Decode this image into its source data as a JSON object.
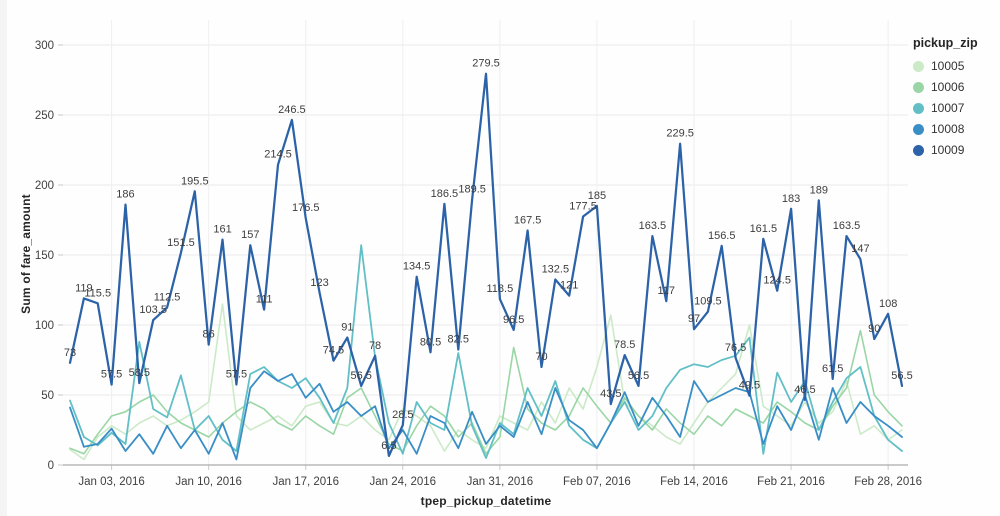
{
  "page": {
    "background": "#fefefe"
  },
  "axes": {
    "ylabel": "Sum of fare_amount",
    "xlabel": "tpep_pickup_datetime"
  },
  "legend": {
    "title": "pickup_zip",
    "items": [
      "10005",
      "10006",
      "10007",
      "10008",
      "10009"
    ]
  },
  "chart_data": {
    "type": "line",
    "title": "",
    "xlabel": "tpep_pickup_datetime",
    "ylabel": "Sum of fare_amount",
    "ylim": [
      0,
      300
    ],
    "y_ticks": [
      0,
      50,
      100,
      150,
      200,
      250,
      300
    ],
    "x_count": 61,
    "x_tick_labels": [
      "Jan 03, 2016",
      "Jan 10, 2016",
      "Jan 17, 2016",
      "Jan 24, 2016",
      "Jan 31, 2016",
      "Feb 07, 2016",
      "Feb 14, 2016",
      "Feb 21, 2016",
      "Feb 28, 2016"
    ],
    "x_tick_indices": [
      3,
      10,
      17,
      24,
      31,
      38,
      45,
      52,
      59
    ],
    "grid": true,
    "legend_title": "pickup_zip",
    "legend_position": "top-right",
    "colors": {
      "grid": "#eaeaea",
      "baseline": "#aaaaaa",
      "tick_text": "#3f3f3f",
      "data_label": "#3d3d3d"
    },
    "series": [
      {
        "name": "10005",
        "color": "#cdeac8",
        "width": 1.6,
        "labeled": false,
        "values": [
          11,
          4,
          20,
          28,
          22,
          30,
          35,
          28,
          32,
          38,
          45,
          115,
          35,
          25,
          30,
          35,
          28,
          42,
          45,
          30,
          28,
          35,
          25,
          18,
          40,
          35,
          28,
          10,
          25,
          18,
          12,
          35,
          30,
          25,
          45,
          30,
          55,
          40,
          70,
          107,
          45,
          35,
          28,
          20,
          15,
          30,
          45,
          55,
          65,
          100,
          42,
          35,
          28,
          45,
          30,
          38,
          60,
          22,
          28,
          18,
          25
        ]
      },
      {
        "name": "10006",
        "color": "#9ad6a5",
        "width": 1.6,
        "labeled": false,
        "values": [
          12,
          8,
          22,
          35,
          38,
          45,
          50,
          38,
          30,
          25,
          20,
          30,
          38,
          45,
          40,
          30,
          25,
          35,
          28,
          22,
          48,
          55,
          35,
          15,
          10,
          28,
          42,
          35,
          20,
          30,
          8,
          20,
          84,
          40,
          30,
          25,
          35,
          55,
          42,
          30,
          48,
          35,
          25,
          40,
          30,
          22,
          35,
          28,
          40,
          35,
          30,
          45,
          38,
          30,
          25,
          42,
          55,
          96,
          50,
          38,
          28
        ]
      },
      {
        "name": "10007",
        "color": "#62bfc6",
        "width": 1.8,
        "labeled": false,
        "values": [
          46,
          20,
          14,
          23,
          15,
          88,
          40,
          34,
          64,
          25,
          35,
          18,
          10,
          65,
          70,
          60,
          55,
          62,
          48,
          30,
          55,
          157,
          77,
          30,
          8,
          45,
          30,
          25,
          80,
          28,
          5,
          30,
          22,
          55,
          35,
          60,
          28,
          18,
          12,
          30,
          45,
          25,
          35,
          55,
          68,
          72,
          70,
          75,
          78,
          91,
          8,
          66,
          45,
          60,
          25,
          45,
          62,
          70,
          35,
          18,
          10
        ]
      },
      {
        "name": "10008",
        "color": "#3a8ec6",
        "width": 1.8,
        "labeled": false,
        "values": [
          41,
          13,
          15,
          26,
          10,
          22,
          8,
          28,
          12,
          25,
          8,
          30,
          4,
          55,
          67,
          60,
          65,
          48,
          58,
          38,
          45,
          35,
          42,
          12,
          25,
          8,
          35,
          30,
          12,
          38,
          15,
          28,
          20,
          45,
          22,
          55,
          32,
          25,
          12,
          30,
          52,
          28,
          48,
          35,
          20,
          60,
          45,
          50,
          55,
          52,
          15,
          42,
          25,
          50,
          18,
          55,
          30,
          45,
          35,
          28,
          20
        ]
      },
      {
        "name": "10009",
        "color": "#2c63a8",
        "width": 2.25,
        "labeled": true,
        "values": [
          73,
          119,
          115.5,
          57.5,
          186,
          58.5,
          103.5,
          112.5,
          151.5,
          195.5,
          86,
          161,
          57.5,
          157,
          111,
          214.5,
          246.5,
          176.5,
          123,
          74.5,
          91,
          56.5,
          78,
          6.5,
          28.5,
          134.5,
          80.5,
          186.5,
          82.5,
          189.5,
          279.5,
          118.5,
          96.5,
          167.5,
          70,
          132.5,
          121,
          177.5,
          185,
          43.5,
          78.5,
          56.5,
          163.5,
          117,
          229.5,
          97,
          109.5,
          156.5,
          76.5,
          49.5,
          161.5,
          124.5,
          183,
          46.5,
          189,
          61.5,
          163.5,
          147,
          90,
          108,
          56.5
        ]
      }
    ]
  }
}
